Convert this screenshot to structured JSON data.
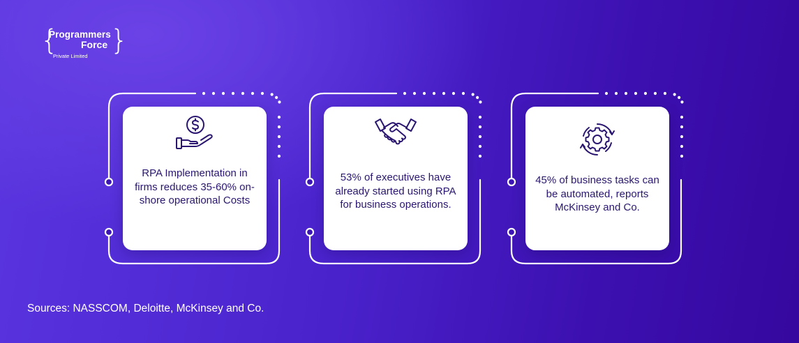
{
  "brand": {
    "line1": "Programmers",
    "line2": "Force",
    "line3": "Private Limited"
  },
  "cards": [
    {
      "icon": "dollar-hand-icon",
      "text": "RPA Implementation in firms reduces 35-60% on-shore operational Costs"
    },
    {
      "icon": "handshake-icon",
      "text": "53% of executives have already started using RPA for business operations."
    },
    {
      "icon": "gear-cycle-icon",
      "text": "45% of business tasks can be automated, reports McKinsey and Co."
    }
  ],
  "sources": "Sources: NASSCOM, Deloitte, McKinsey and Co.",
  "colors": {
    "background": "#4a22cc",
    "card": "#ffffff",
    "text_dark": "#2a1670",
    "line": "#ffffff"
  }
}
